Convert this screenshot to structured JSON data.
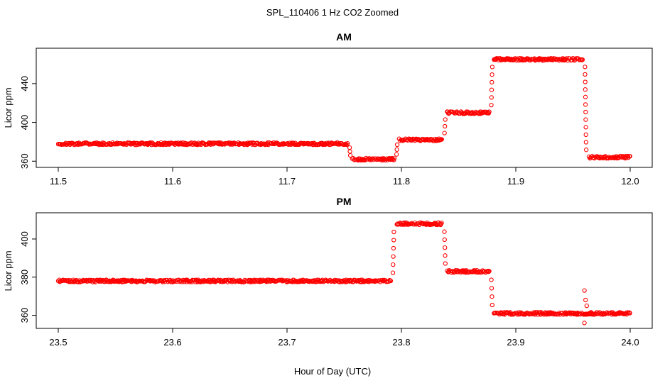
{
  "figure": {
    "title": "SPL_110406  1 Hz CO2 Zoomed",
    "xlabel": "Hour of Day (UTC)"
  },
  "chart_data": [
    {
      "type": "scatter",
      "title": "AM",
      "xlabel": "Hour of Day (UTC)",
      "ylabel": "Licor ppm",
      "xlim": [
        11.5,
        12.0
      ],
      "ylim": [
        358,
        475
      ],
      "x_ticks": [
        "11.5",
        "11.6",
        "11.7",
        "11.8",
        "11.9",
        "12.0"
      ],
      "x_tick_values": [
        11.5,
        11.6,
        11.7,
        11.8,
        11.9,
        12.0
      ],
      "y_ticks": [
        "360",
        "400",
        "440"
      ],
      "y_tick_values": [
        360,
        400,
        440
      ],
      "grid": false,
      "marker_color": "#ff0000",
      "series": [
        {
          "segments": [
            {
              "x": [
                11.5,
                11.753
              ],
              "y": 378
            },
            {
              "x": [
                11.757,
                11.794
              ],
              "y": 362
            },
            {
              "x": [
                11.798,
                11.836
              ],
              "y": 382
            },
            {
              "x": [
                11.84,
                11.877
              ],
              "y": 410
            },
            {
              "x": [
                11.881,
                11.959
              ],
              "y": 465
            },
            {
              "x": [
                11.964,
                12.0
              ],
              "y": 364
            }
          ],
          "transitions": [
            {
              "x": 11.755,
              "y": [
                378,
                362
              ]
            },
            {
              "x": 11.796,
              "y": [
                362,
                382
              ]
            },
            {
              "x": 11.838,
              "y": [
                382,
                410
              ]
            },
            {
              "x": 11.879,
              "y": [
                410,
                465
              ]
            },
            {
              "x": 11.961,
              "y": [
                465,
                364
              ]
            }
          ]
        }
      ]
    },
    {
      "type": "scatter",
      "title": "PM",
      "xlabel": "Hour of Day (UTC)",
      "ylabel": "Licor ppm",
      "xlim": [
        23.5,
        24.0
      ],
      "ylim": [
        355,
        413
      ],
      "x_ticks": [
        "23.5",
        "23.6",
        "23.7",
        "23.8",
        "23.9",
        "24.0"
      ],
      "x_tick_values": [
        23.5,
        23.6,
        23.7,
        23.8,
        23.9,
        24.0
      ],
      "y_ticks": [
        "360",
        "380",
        "400"
      ],
      "y_tick_values": [
        360,
        380,
        400
      ],
      "grid": false,
      "marker_color": "#ff0000",
      "series": [
        {
          "segments": [
            {
              "x": [
                23.5,
                23.791
              ],
              "y": 378
            },
            {
              "x": [
                23.796,
                23.836
              ],
              "y": 408
            },
            {
              "x": [
                23.84,
                23.877
              ],
              "y": 383
            },
            {
              "x": [
                23.881,
                24.0
              ],
              "y": 361
            }
          ],
          "transitions": [
            {
              "x": 23.793,
              "y": [
                378,
                408
              ]
            },
            {
              "x": 23.838,
              "y": [
                408,
                383
              ]
            },
            {
              "x": 23.879,
              "y": [
                383,
                361
              ]
            }
          ],
          "outliers": [
            {
              "x": 23.96,
              "y": 373
            },
            {
              "x": 23.96,
              "y": 356
            },
            {
              "x": 23.961,
              "y": 368
            },
            {
              "x": 23.962,
              "y": 365
            }
          ]
        }
      ]
    }
  ]
}
